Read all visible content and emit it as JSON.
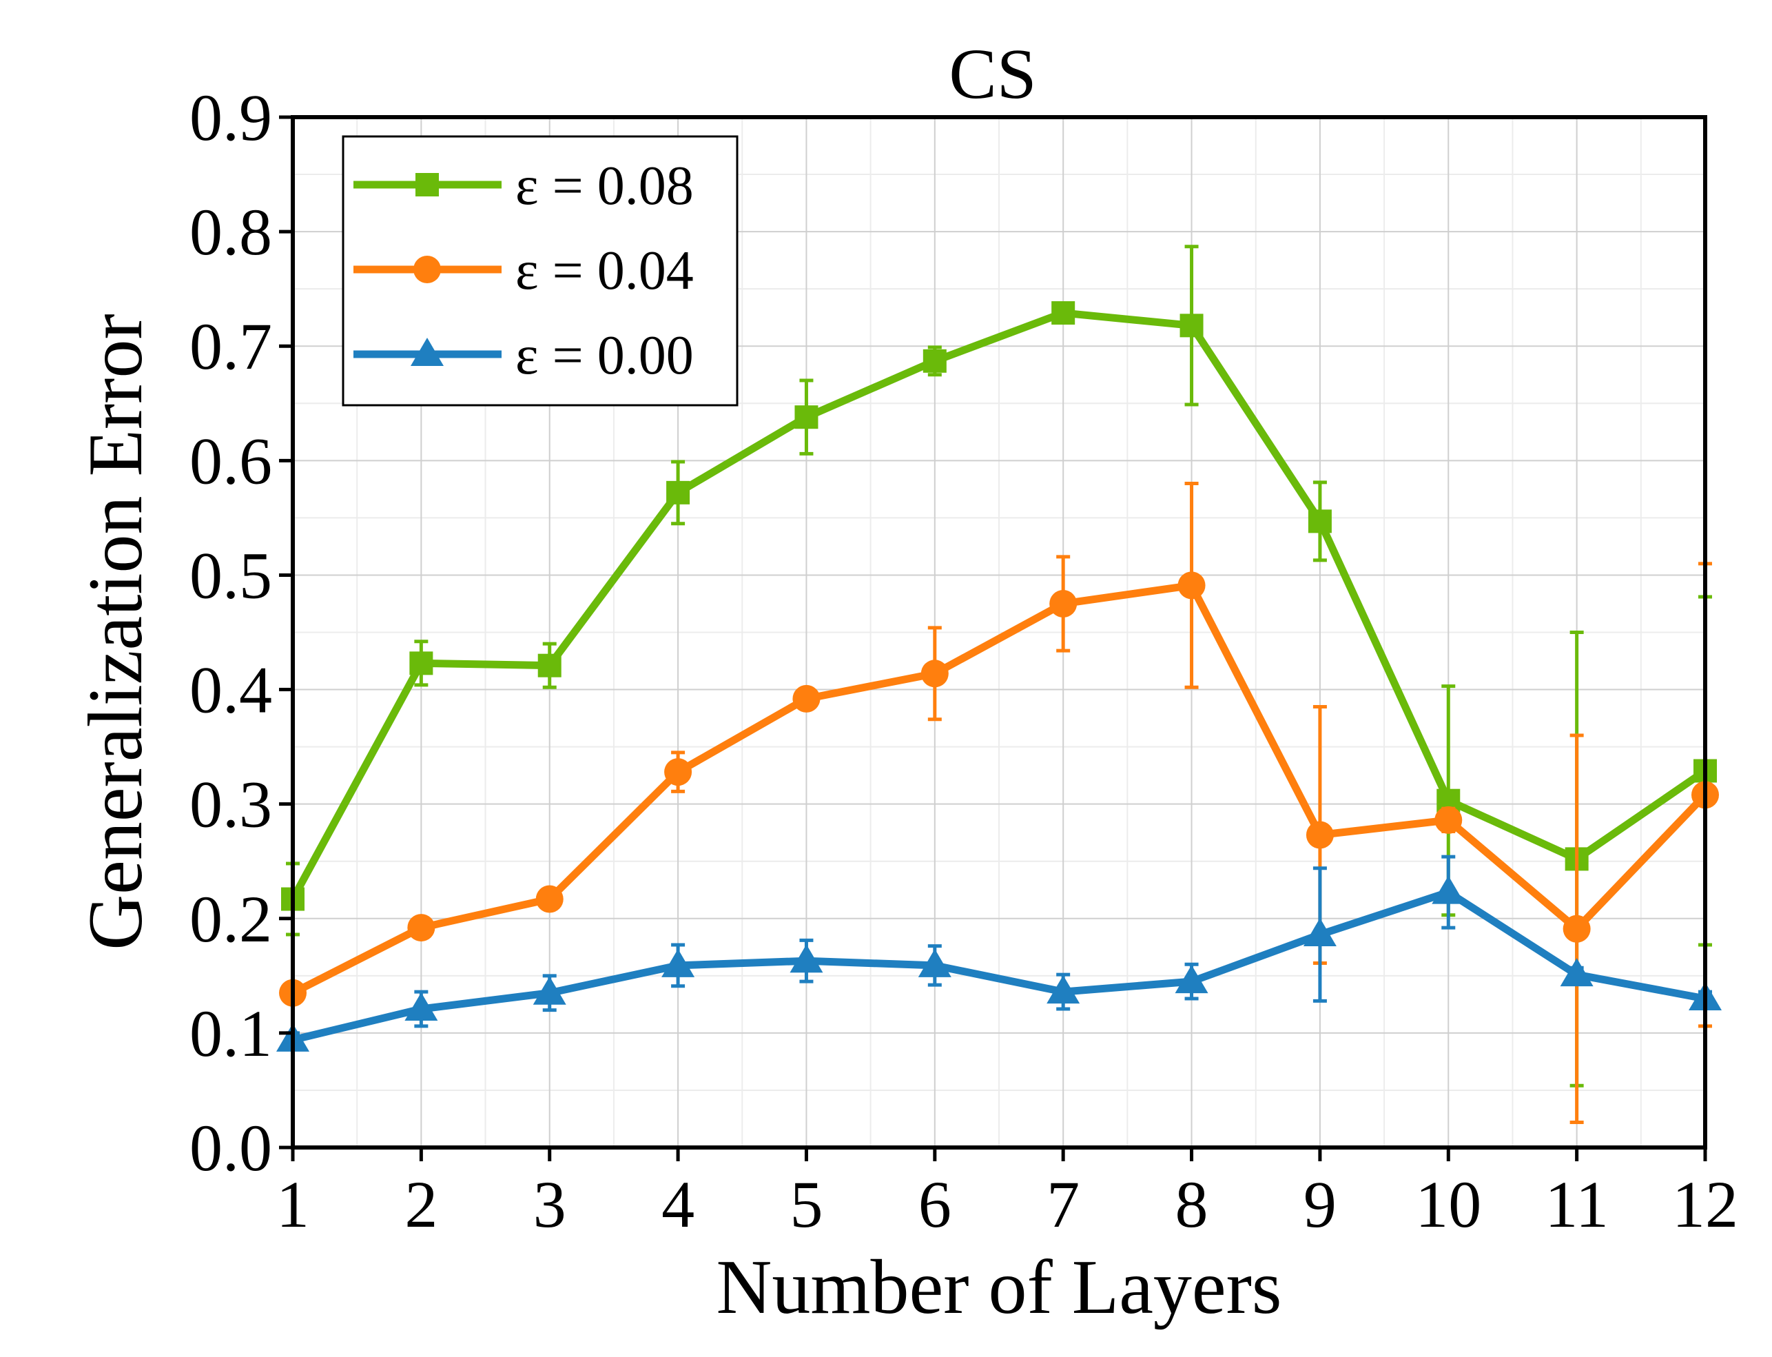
{
  "chart_data": {
    "type": "line",
    "title": "CS",
    "xlabel": "Number of Layers",
    "ylabel": "Generalization Error",
    "xlim": [
      1,
      12
    ],
    "ylim": [
      0.0,
      0.9
    ],
    "x_ticks": [
      "1",
      "2",
      "3",
      "4",
      "5",
      "6",
      "7",
      "8",
      "9",
      "10",
      "11",
      "12"
    ],
    "y_ticks": [
      "0.0",
      "0.1",
      "0.2",
      "0.3",
      "0.4",
      "0.5",
      "0.6",
      "0.7",
      "0.8",
      "0.9"
    ],
    "grid": true,
    "legend_position": "top-left",
    "x": [
      1,
      2,
      3,
      4,
      5,
      6,
      7,
      8,
      9,
      10,
      11,
      12
    ],
    "series": [
      {
        "name": "ε = 0.08",
        "color": "#6aba0a",
        "marker": "square",
        "values": [
          0.217,
          0.423,
          0.421,
          0.572,
          0.638,
          0.687,
          0.729,
          0.718,
          0.547,
          0.303,
          0.252,
          0.329
        ],
        "errors": [
          0.031,
          0.019,
          0.019,
          0.027,
          0.032,
          0.012,
          0.008,
          0.069,
          0.034,
          0.1,
          0.198,
          0.152
        ]
      },
      {
        "name": "ε = 0.04",
        "color": "#ff7f0e",
        "marker": "circle",
        "values": [
          0.135,
          0.192,
          0.217,
          0.328,
          0.392,
          0.414,
          0.475,
          0.491,
          0.273,
          0.286,
          0.191,
          0.308
        ],
        "errors": [
          0.006,
          0.006,
          0.006,
          0.017,
          0.006,
          0.04,
          0.041,
          0.089,
          0.112,
          0.01,
          0.169,
          0.202
        ]
      },
      {
        "name": "ε = 0.00",
        "color": "#1f7fc0",
        "marker": "triangle",
        "values": [
          0.094,
          0.121,
          0.135,
          0.159,
          0.163,
          0.159,
          0.136,
          0.145,
          0.186,
          0.223,
          0.151,
          0.13
        ],
        "errors": [
          0.006,
          0.015,
          0.015,
          0.018,
          0.018,
          0.017,
          0.015,
          0.015,
          0.058,
          0.031,
          0.006,
          0.006
        ]
      }
    ]
  }
}
